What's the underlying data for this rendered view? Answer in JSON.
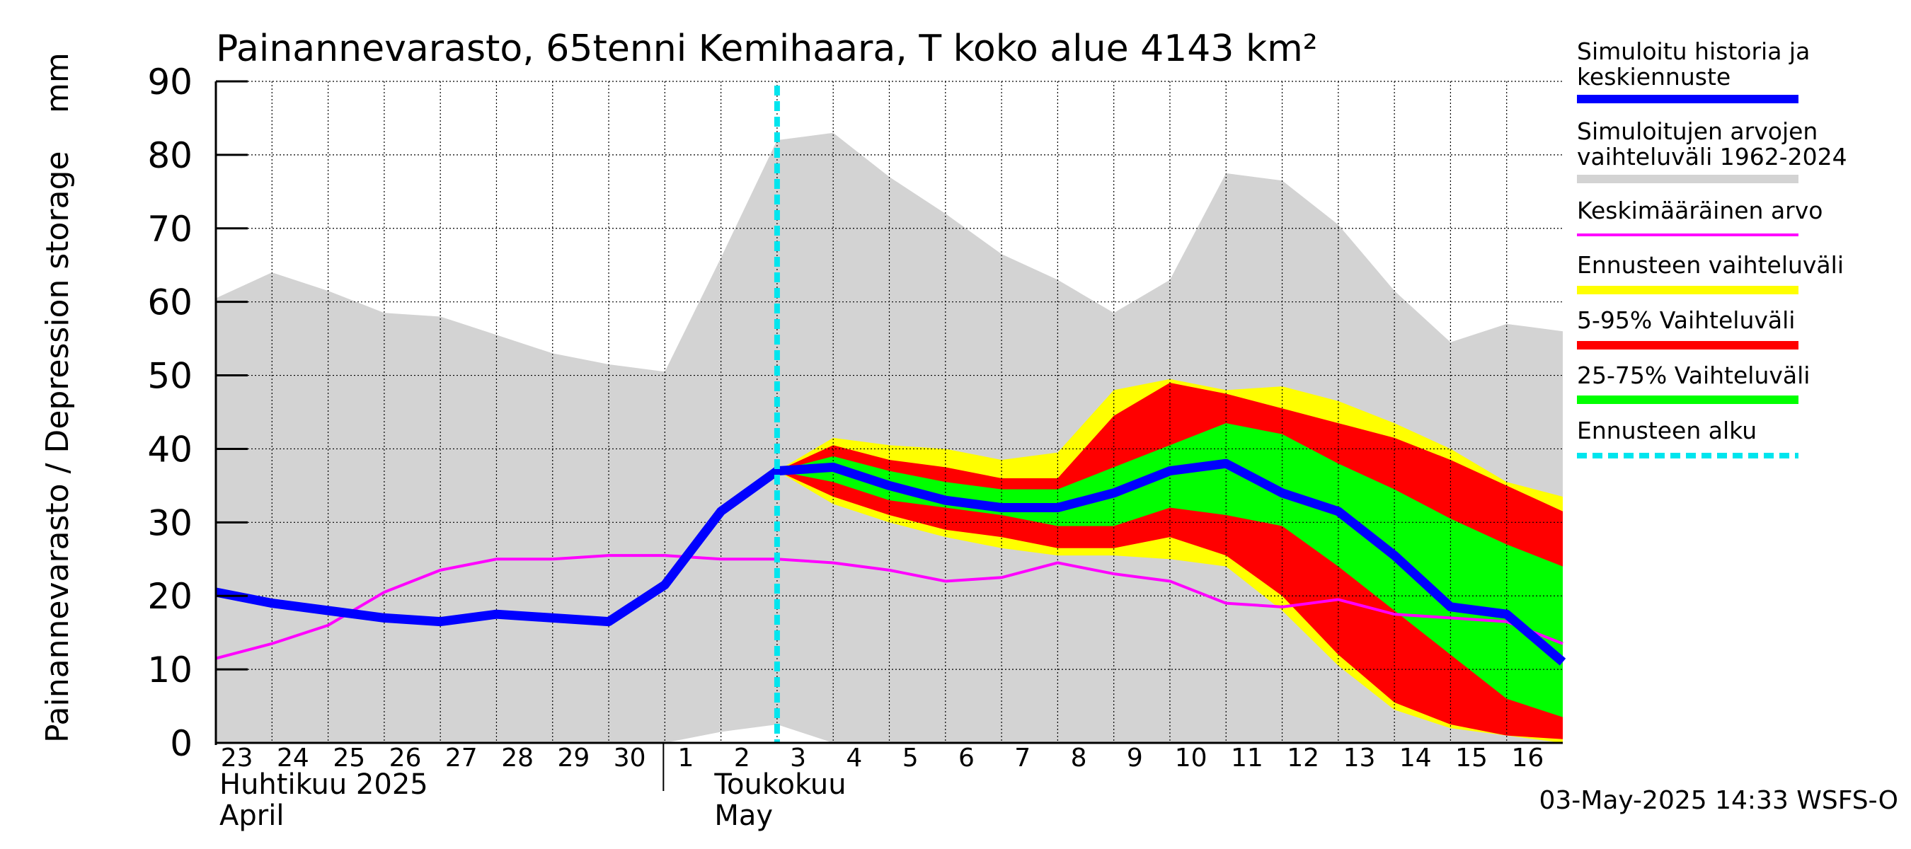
{
  "chart_data": {
    "type": "area",
    "title": "Painannevarasto, 65tenni Kemihaara, T koko alue 4143 km²",
    "ylabel": "Painannevarasto / Depression storage",
    "yunit": "mm",
    "ylim": [
      0,
      90
    ],
    "yticks": [
      0,
      10,
      20,
      30,
      40,
      50,
      60,
      70,
      80,
      90
    ],
    "xlim": [
      "2025-04-23",
      "2025-05-17"
    ],
    "day_labels": [
      {
        "date": "2025-04-23",
        "label": "23"
      },
      {
        "date": "2025-04-24",
        "label": "24"
      },
      {
        "date": "2025-04-25",
        "label": "25"
      },
      {
        "date": "2025-04-26",
        "label": "26"
      },
      {
        "date": "2025-04-27",
        "label": "27"
      },
      {
        "date": "2025-04-28",
        "label": "28"
      },
      {
        "date": "2025-04-29",
        "label": "29"
      },
      {
        "date": "2025-04-30",
        "label": "30"
      },
      {
        "date": "2025-05-01",
        "label": "1"
      },
      {
        "date": "2025-05-02",
        "label": "2"
      },
      {
        "date": "2025-05-03",
        "label": "3"
      },
      {
        "date": "2025-05-04",
        "label": "4"
      },
      {
        "date": "2025-05-05",
        "label": "5"
      },
      {
        "date": "2025-05-06",
        "label": "6"
      },
      {
        "date": "2025-05-07",
        "label": "7"
      },
      {
        "date": "2025-05-08",
        "label": "8"
      },
      {
        "date": "2025-05-09",
        "label": "9"
      },
      {
        "date": "2025-05-10",
        "label": "10"
      },
      {
        "date": "2025-05-11",
        "label": "11"
      },
      {
        "date": "2025-05-12",
        "label": "12"
      },
      {
        "date": "2025-05-13",
        "label": "13"
      },
      {
        "date": "2025-05-14",
        "label": "14"
      },
      {
        "date": "2025-05-15",
        "label": "15"
      },
      {
        "date": "2025-05-16",
        "label": "16"
      }
    ],
    "month_labels": [
      {
        "date": "2025-04-23",
        "line1": "Huhtikuu  2025",
        "line2": "April"
      },
      {
        "date": "2025-05-01",
        "line1": "Toukokuu",
        "line2": "May"
      }
    ],
    "month_boundary": "2025-05-01",
    "grid": true,
    "forecast_start": "2025-05-03",
    "footer": "03-May-2025 14:33 WSFS-O",
    "legend_position": "right",
    "legend": [
      {
        "label": "Simuloitu historia ja keskiennuste",
        "color": "#0000ff",
        "style": "thick"
      },
      {
        "label": "Simuloitujen arvojen vaihteluväli 1962-2024",
        "color": "#d3d3d3",
        "style": "thick"
      },
      {
        "label": "Keskimääräinen arvo",
        "color": "#ff00ff",
        "style": "thin"
      },
      {
        "label": "Ennusteen vaihteluväli",
        "color": "#ffff00",
        "style": "thick"
      },
      {
        "label": "5-95% Vaihteluväli",
        "color": "#ff0000",
        "style": "thick"
      },
      {
        "label": "25-75% Vaihteluväli",
        "color": "#00ff00",
        "style": "thick"
      },
      {
        "label": "Ennusteen alku",
        "color": "#00e5ee",
        "style": "dashed"
      }
    ],
    "series": [
      {
        "name": "Simuloitujen arvojen vaihteluväli 1962-2024",
        "kind": "band",
        "color": "#d3d3d3",
        "x": [
          "2025-04-23",
          "2025-04-24",
          "2025-04-25",
          "2025-04-26",
          "2025-04-27",
          "2025-04-28",
          "2025-04-29",
          "2025-04-30",
          "2025-05-01",
          "2025-05-02",
          "2025-05-03",
          "2025-05-04",
          "2025-05-05",
          "2025-05-06",
          "2025-05-07",
          "2025-05-08",
          "2025-05-09",
          "2025-05-10",
          "2025-05-11",
          "2025-05-12",
          "2025-05-13",
          "2025-05-14",
          "2025-05-15",
          "2025-05-16",
          "2025-05-17"
        ],
        "low": [
          0,
          0,
          0,
          0,
          0,
          0,
          0,
          0,
          0,
          1.5,
          2.5,
          0,
          0,
          0,
          0,
          0,
          0,
          0,
          0,
          0,
          0,
          0,
          0,
          0,
          0
        ],
        "high": [
          60.5,
          64,
          61.5,
          58.5,
          58,
          55.5,
          53,
          51.5,
          50.5,
          66,
          82,
          83,
          77,
          72,
          66.5,
          63,
          58.5,
          63,
          77.5,
          76.5,
          70.5,
          61.5,
          54.5,
          57,
          56
        ]
      },
      {
        "name": "Ennusteen vaihteluväli",
        "kind": "band",
        "color": "#ffff00",
        "x": [
          "2025-05-03",
          "2025-05-04",
          "2025-05-05",
          "2025-05-06",
          "2025-05-07",
          "2025-05-08",
          "2025-05-09",
          "2025-05-10",
          "2025-05-11",
          "2025-05-12",
          "2025-05-13",
          "2025-05-14",
          "2025-05-15",
          "2025-05-16",
          "2025-05-17"
        ],
        "low": [
          37,
          32.5,
          30,
          28,
          26.5,
          25.5,
          25.5,
          25,
          24,
          18,
          10.5,
          4.5,
          2,
          1,
          0
        ],
        "high": [
          37,
          41.5,
          40.5,
          40,
          38.5,
          39.5,
          48,
          49.5,
          48,
          48.5,
          46.5,
          43.5,
          40,
          35.5,
          33.5
        ]
      },
      {
        "name": "5-95% Vaihteluväli",
        "kind": "band",
        "color": "#ff0000",
        "x": [
          "2025-05-03",
          "2025-05-04",
          "2025-05-05",
          "2025-05-06",
          "2025-05-07",
          "2025-05-08",
          "2025-05-09",
          "2025-05-10",
          "2025-05-11",
          "2025-05-12",
          "2025-05-13",
          "2025-05-14",
          "2025-05-15",
          "2025-05-16",
          "2025-05-17"
        ],
        "low": [
          37,
          33.5,
          31,
          29,
          28,
          26.5,
          26.5,
          28,
          25.5,
          20,
          12,
          5.5,
          2.5,
          1,
          0.5
        ],
        "high": [
          37,
          40.5,
          38.5,
          37.5,
          36,
          36,
          44.5,
          49,
          47.5,
          45.5,
          43.5,
          41.5,
          38.5,
          35,
          31.5
        ]
      },
      {
        "name": "25-75% Vaihteluväli",
        "kind": "band",
        "color": "#00ff00",
        "x": [
          "2025-05-03",
          "2025-05-04",
          "2025-05-05",
          "2025-05-06",
          "2025-05-07",
          "2025-05-08",
          "2025-05-09",
          "2025-05-10",
          "2025-05-11",
          "2025-05-12",
          "2025-05-13",
          "2025-05-14",
          "2025-05-15",
          "2025-05-16",
          "2025-05-17"
        ],
        "low": [
          37,
          35.5,
          33,
          32,
          31,
          29.5,
          29.5,
          32,
          31,
          29.5,
          24,
          18,
          12,
          6,
          3.5
        ],
        "high": [
          37,
          39,
          37,
          35.5,
          34.5,
          34.5,
          37.5,
          40.5,
          43.5,
          42,
          38,
          34.5,
          30.5,
          27,
          24
        ]
      },
      {
        "name": "Keskimääräinen arvo",
        "kind": "line",
        "color": "#ff00ff",
        "x": [
          "2025-04-23",
          "2025-04-24",
          "2025-04-25",
          "2025-04-26",
          "2025-04-27",
          "2025-04-28",
          "2025-04-29",
          "2025-04-30",
          "2025-05-01",
          "2025-05-02",
          "2025-05-03",
          "2025-05-04",
          "2025-05-05",
          "2025-05-06",
          "2025-05-07",
          "2025-05-08",
          "2025-05-09",
          "2025-05-10",
          "2025-05-11",
          "2025-05-12",
          "2025-05-13",
          "2025-05-14",
          "2025-05-15",
          "2025-05-16",
          "2025-05-17"
        ],
        "y": [
          11.5,
          13.5,
          16,
          20.5,
          23.5,
          25,
          25,
          25.5,
          25.5,
          25,
          25,
          24.5,
          23.5,
          22,
          22.5,
          24.5,
          23,
          22,
          19,
          18.5,
          19.5,
          17.5,
          17,
          16.5,
          13.5
        ]
      },
      {
        "name": "Simuloitu historia ja keskiennuste",
        "kind": "line",
        "color": "#0000ff",
        "x": [
          "2025-04-23",
          "2025-04-24",
          "2025-04-25",
          "2025-04-26",
          "2025-04-27",
          "2025-04-28",
          "2025-04-29",
          "2025-04-30",
          "2025-05-01",
          "2025-05-02",
          "2025-05-03",
          "2025-05-04",
          "2025-05-05",
          "2025-05-06",
          "2025-05-07",
          "2025-05-08",
          "2025-05-09",
          "2025-05-10",
          "2025-05-11",
          "2025-05-12",
          "2025-05-13",
          "2025-05-14",
          "2025-05-15",
          "2025-05-16",
          "2025-05-17"
        ],
        "y": [
          20.5,
          19,
          18,
          17,
          16.5,
          17.5,
          17,
          16.5,
          21.5,
          31.5,
          37,
          37.5,
          35,
          33,
          32,
          32,
          34,
          37,
          38,
          34,
          31.5,
          25.5,
          18.5,
          17.5,
          11
        ]
      }
    ]
  }
}
